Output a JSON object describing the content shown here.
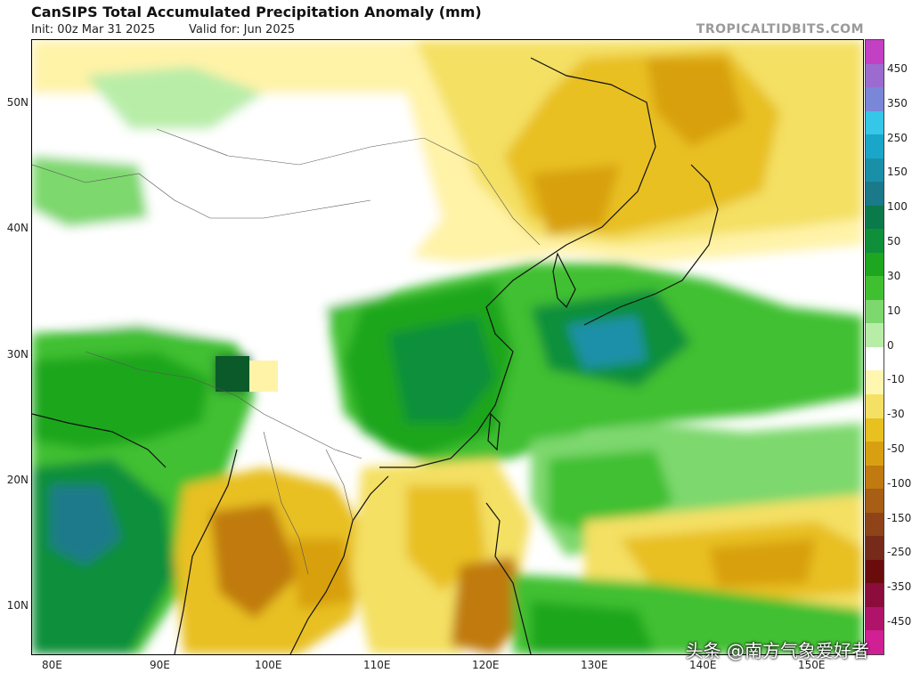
{
  "header": {
    "title": "CanSIPS Total Accumulated Precipitation Anomaly (mm)",
    "init": "Init: 00z Mar 31 2025",
    "valid": "Valid for: Jun 2025",
    "credit": "TROPICALTIDBITS.COM"
  },
  "axes": {
    "lat_labels": [
      "50N",
      "40N",
      "30N",
      "20N",
      "10N"
    ],
    "lon_labels": [
      "80E",
      "90E",
      "100E",
      "110E",
      "120E",
      "130E",
      "140E",
      "150E"
    ]
  },
  "legend": {
    "labels": [
      "450",
      "350",
      "250",
      "150",
      "100",
      "50",
      "30",
      "10",
      "0",
      "-10",
      "-30",
      "-50",
      "-100",
      "-150",
      "-250",
      "-350",
      "-450"
    ],
    "colors": [
      "#c33fc3",
      "#9b6bd0",
      "#7a86d8",
      "#35c6e8",
      "#1aa6c8",
      "#1a90a8",
      "#1a7a8a",
      "#0a7a4a",
      "#0f8f3a",
      "#1da61f",
      "#40c030",
      "#7dd86d",
      "#b8eda8",
      "#ffffff",
      "#fff6b0",
      "#f4e064",
      "#e8c020",
      "#d8a010",
      "#c07a10",
      "#a85e14",
      "#8e4418",
      "#762a1a",
      "#6a0c0c",
      "#8c0c3c",
      "#b0146a",
      "#d02094"
    ]
  },
  "watermark": "头条 @南方气象爱好者"
}
